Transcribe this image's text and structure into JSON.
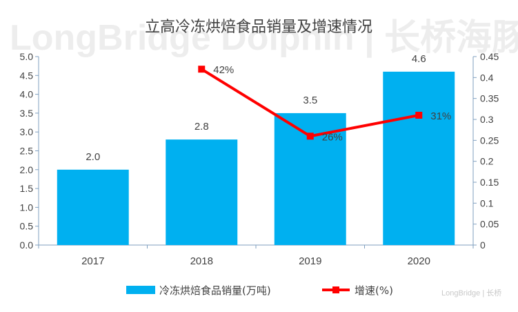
{
  "watermark": "LongBridge Dolphin | 长桥海豚投研",
  "brand_mark": "LongBridge | 长桥",
  "chart_data": {
    "type": "bar",
    "title": "立高冷冻烘焙食品销量及增速情况",
    "categories": [
      "2017",
      "2018",
      "2019",
      "2020"
    ],
    "series": [
      {
        "name": "冷冻烘焙食品销量(万吨)",
        "kind": "bar",
        "axis": "left",
        "color": "#00b0f0",
        "values": [
          2.0,
          2.8,
          3.5,
          4.6
        ],
        "labels": [
          "2.0",
          "2.8",
          "3.5",
          "4.6"
        ]
      },
      {
        "name": "增速(%)",
        "kind": "line",
        "axis": "right",
        "color": "#ff0000",
        "values": [
          null,
          0.42,
          0.26,
          0.31
        ],
        "labels": [
          "",
          "42%",
          "26%",
          "31%"
        ]
      }
    ],
    "y_left": {
      "min": 0,
      "max": 5.0,
      "ticks": [
        "0.0",
        "0.5",
        "1.0",
        "1.5",
        "2.0",
        "2.5",
        "3.0",
        "3.5",
        "4.0",
        "4.5",
        "5.0"
      ]
    },
    "y_right": {
      "min": 0,
      "max": 0.45,
      "ticks": [
        "0",
        "0.05",
        "0.1",
        "0.15",
        "0.2",
        "0.25",
        "0.3",
        "0.35",
        "0.4",
        "0.45"
      ]
    },
    "grid": false,
    "legend_position": "bottom"
  }
}
